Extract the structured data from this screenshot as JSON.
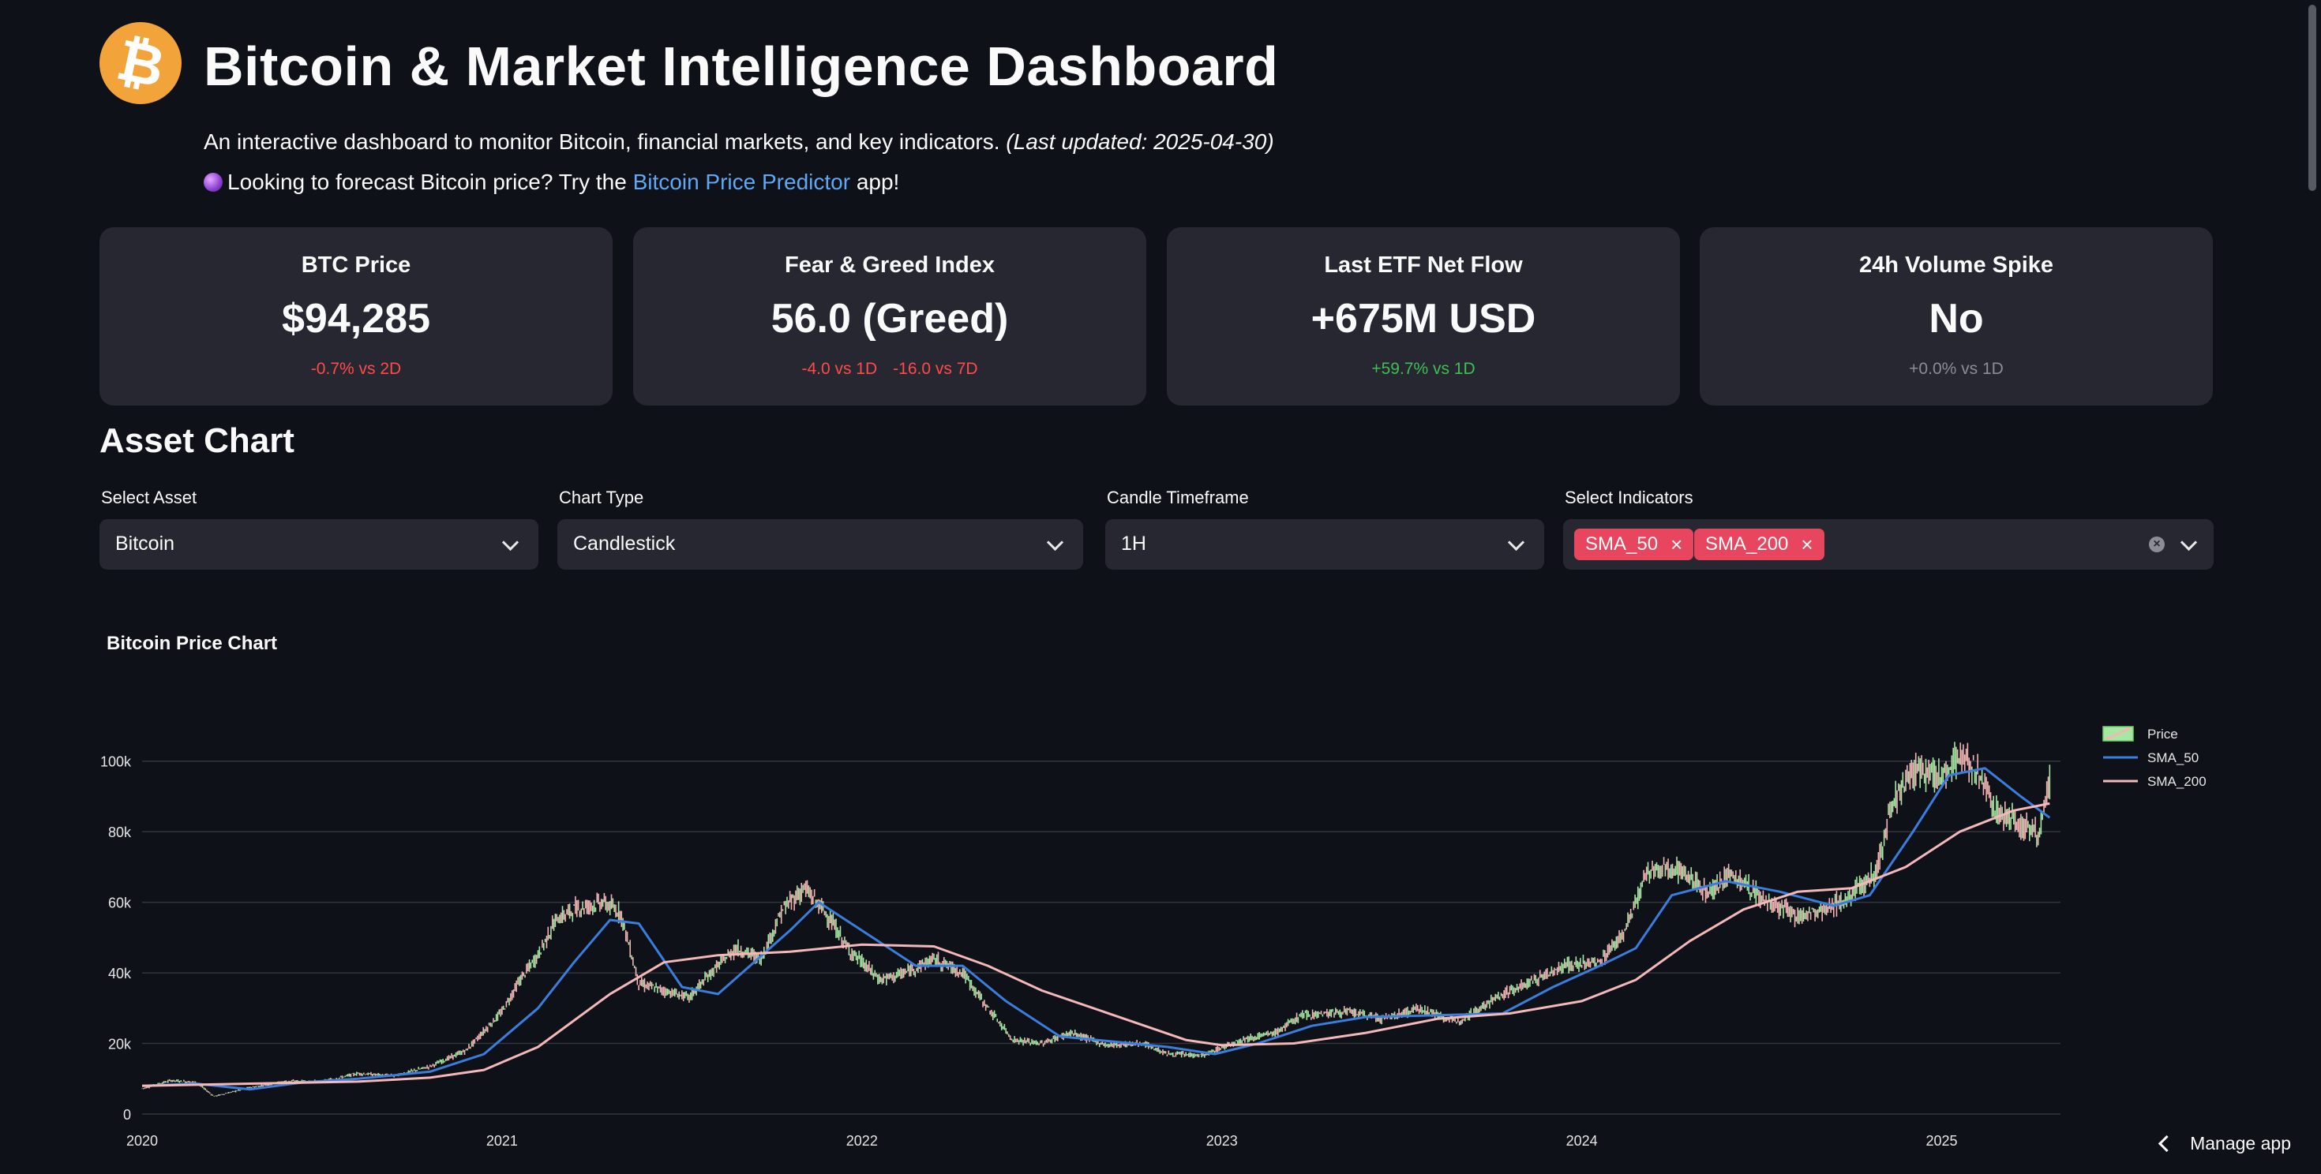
{
  "header": {
    "logo_icon": "bitcoin-logo-icon",
    "title": "Bitcoin & Market Intelligence Dashboard",
    "subtitle": "An interactive dashboard to monitor Bitcoin, financial markets, and key indicators.",
    "last_updated": "(Last updated: 2025-04-30)",
    "promo_prefix": "Looking to forecast Bitcoin price? Try the",
    "promo_link": "Bitcoin Price Predictor",
    "promo_suffix": "app!"
  },
  "metrics": [
    {
      "label": "BTC Price",
      "value": "$94,285",
      "deltas": [
        "-0.7% vs 2D"
      ],
      "color": "#ff4b4b"
    },
    {
      "label": "Fear & Greed Index",
      "value": "56.0 (Greed)",
      "deltas": [
        "-4.0 vs 1D",
        "-16.0 vs 7D"
      ],
      "color": "#ff4b4b"
    },
    {
      "label": "Last ETF Net Flow",
      "value": "+675M USD",
      "deltas": [
        "+59.7% vs 1D"
      ],
      "color": "#3fbf55"
    },
    {
      "label": "24h Volume Spike",
      "value": "No",
      "deltas": [
        "+0.0% vs 1D"
      ],
      "color": "#8b8d94"
    }
  ],
  "asset_chart": {
    "heading": "Asset Chart",
    "controls": {
      "asset": {
        "label": "Select Asset",
        "value": "Bitcoin"
      },
      "chart_type": {
        "label": "Chart Type",
        "value": "Candlestick"
      },
      "timeframe": {
        "label": "Candle Timeframe",
        "value": "1H"
      },
      "indicators": {
        "label": "Select Indicators",
        "selected": [
          "SMA_50",
          "SMA_200"
        ],
        "tag_color": "#e8455e"
      }
    }
  },
  "chart_data": {
    "type": "line",
    "title": "Bitcoin Price Chart",
    "xlabel": "",
    "ylabel": "",
    "x_ticks": [
      "2020",
      "2021",
      "2022",
      "2023",
      "2024",
      "2025"
    ],
    "y_ticks": [
      "0",
      "20k",
      "40k",
      "60k",
      "80k",
      "100k"
    ],
    "xlim": [
      2020.0,
      2025.33
    ],
    "ylim": [
      0,
      110000
    ],
    "grid": true,
    "legend_position": "top-right",
    "series": [
      {
        "name": "Price",
        "style": "candlestick",
        "color_up": "#a8e6a3",
        "color_down": "#f3b6b6",
        "points": [
          [
            2020.0,
            7200
          ],
          [
            2020.08,
            9500
          ],
          [
            2020.15,
            9000
          ],
          [
            2020.2,
            5000
          ],
          [
            2020.3,
            7500
          ],
          [
            2020.4,
            9300
          ],
          [
            2020.5,
            9200
          ],
          [
            2020.6,
            11500
          ],
          [
            2020.7,
            10800
          ],
          [
            2020.8,
            13500
          ],
          [
            2020.9,
            18000
          ],
          [
            2021.0,
            29000
          ],
          [
            2021.05,
            38000
          ],
          [
            2021.1,
            45000
          ],
          [
            2021.15,
            55000
          ],
          [
            2021.2,
            58000
          ],
          [
            2021.28,
            60000
          ],
          [
            2021.33,
            57000
          ],
          [
            2021.38,
            37000
          ],
          [
            2021.45,
            35000
          ],
          [
            2021.52,
            33000
          ],
          [
            2021.58,
            40000
          ],
          [
            2021.65,
            47000
          ],
          [
            2021.72,
            44000
          ],
          [
            2021.78,
            58000
          ],
          [
            2021.84,
            64000
          ],
          [
            2021.9,
            57000
          ],
          [
            2021.96,
            47000
          ],
          [
            2022.05,
            38000
          ],
          [
            2022.12,
            40000
          ],
          [
            2022.2,
            44000
          ],
          [
            2022.28,
            40000
          ],
          [
            2022.35,
            30000
          ],
          [
            2022.42,
            21000
          ],
          [
            2022.5,
            20000
          ],
          [
            2022.58,
            23000
          ],
          [
            2022.68,
            19500
          ],
          [
            2022.78,
            20000
          ],
          [
            2022.85,
            17000
          ],
          [
            2022.95,
            16600
          ],
          [
            2023.05,
            21000
          ],
          [
            2023.15,
            23000
          ],
          [
            2023.22,
            28000
          ],
          [
            2023.35,
            29000
          ],
          [
            2023.45,
            27000
          ],
          [
            2023.55,
            30000
          ],
          [
            2023.65,
            26000
          ],
          [
            2023.78,
            34000
          ],
          [
            2023.85,
            37000
          ],
          [
            2023.95,
            42000
          ],
          [
            2024.05,
            43000
          ],
          [
            2024.12,
            52000
          ],
          [
            2024.18,
            68000
          ],
          [
            2024.26,
            70000
          ],
          [
            2024.35,
            63000
          ],
          [
            2024.42,
            68000
          ],
          [
            2024.5,
            61000
          ],
          [
            2024.6,
            56000
          ],
          [
            2024.68,
            58000
          ],
          [
            2024.75,
            62000
          ],
          [
            2024.82,
            69000
          ],
          [
            2024.86,
            88000
          ],
          [
            2024.92,
            97000
          ],
          [
            2025.0,
            96000
          ],
          [
            2025.05,
            102000
          ],
          [
            2025.1,
            97000
          ],
          [
            2025.15,
            86000
          ],
          [
            2025.2,
            83000
          ],
          [
            2025.27,
            80000
          ],
          [
            2025.3,
            94000
          ]
        ]
      },
      {
        "name": "SMA_50",
        "style": "line",
        "color": "#3b7ddd",
        "points": [
          [
            2020.0,
            8000
          ],
          [
            2020.15,
            8600
          ],
          [
            2020.3,
            7000
          ],
          [
            2020.45,
            9000
          ],
          [
            2020.6,
            10000
          ],
          [
            2020.8,
            12000
          ],
          [
            2020.95,
            17000
          ],
          [
            2021.1,
            30000
          ],
          [
            2021.2,
            43000
          ],
          [
            2021.3,
            55000
          ],
          [
            2021.38,
            54000
          ],
          [
            2021.5,
            36000
          ],
          [
            2021.6,
            34000
          ],
          [
            2021.7,
            43000
          ],
          [
            2021.8,
            52000
          ],
          [
            2021.88,
            60000
          ],
          [
            2022.0,
            52000
          ],
          [
            2022.15,
            42000
          ],
          [
            2022.28,
            42000
          ],
          [
            2022.4,
            32000
          ],
          [
            2022.55,
            22000
          ],
          [
            2022.7,
            20500
          ],
          [
            2022.85,
            19000
          ],
          [
            2022.98,
            17000
          ],
          [
            2023.1,
            20000
          ],
          [
            2023.25,
            25000
          ],
          [
            2023.4,
            27500
          ],
          [
            2023.6,
            28000
          ],
          [
            2023.78,
            28500
          ],
          [
            2023.92,
            36000
          ],
          [
            2024.05,
            42000
          ],
          [
            2024.15,
            47000
          ],
          [
            2024.25,
            62000
          ],
          [
            2024.4,
            66000
          ],
          [
            2024.55,
            63000
          ],
          [
            2024.7,
            59000
          ],
          [
            2024.8,
            62000
          ],
          [
            2024.92,
            80000
          ],
          [
            2025.02,
            96000
          ],
          [
            2025.12,
            98000
          ],
          [
            2025.22,
            90000
          ],
          [
            2025.3,
            84000
          ]
        ]
      },
      {
        "name": "SMA_200",
        "style": "line",
        "color": "#f4b8b8",
        "points": [
          [
            2020.0,
            8000
          ],
          [
            2020.3,
            8600
          ],
          [
            2020.6,
            9200
          ],
          [
            2020.8,
            10300
          ],
          [
            2020.95,
            12500
          ],
          [
            2021.1,
            19000
          ],
          [
            2021.3,
            34000
          ],
          [
            2021.45,
            43000
          ],
          [
            2021.6,
            45000
          ],
          [
            2021.8,
            46000
          ],
          [
            2022.0,
            48000
          ],
          [
            2022.2,
            47500
          ],
          [
            2022.35,
            42000
          ],
          [
            2022.5,
            35000
          ],
          [
            2022.7,
            28000
          ],
          [
            2022.9,
            21000
          ],
          [
            2023.0,
            19500
          ],
          [
            2023.2,
            20000
          ],
          [
            2023.4,
            23000
          ],
          [
            2023.6,
            27000
          ],
          [
            2023.8,
            28500
          ],
          [
            2024.0,
            32000
          ],
          [
            2024.15,
            38000
          ],
          [
            2024.3,
            49000
          ],
          [
            2024.45,
            58000
          ],
          [
            2024.6,
            63000
          ],
          [
            2024.75,
            64000
          ],
          [
            2024.9,
            70000
          ],
          [
            2025.05,
            80000
          ],
          [
            2025.2,
            86000
          ],
          [
            2025.3,
            88000
          ]
        ]
      }
    ]
  },
  "footer": {
    "manage_label": "Manage app"
  }
}
